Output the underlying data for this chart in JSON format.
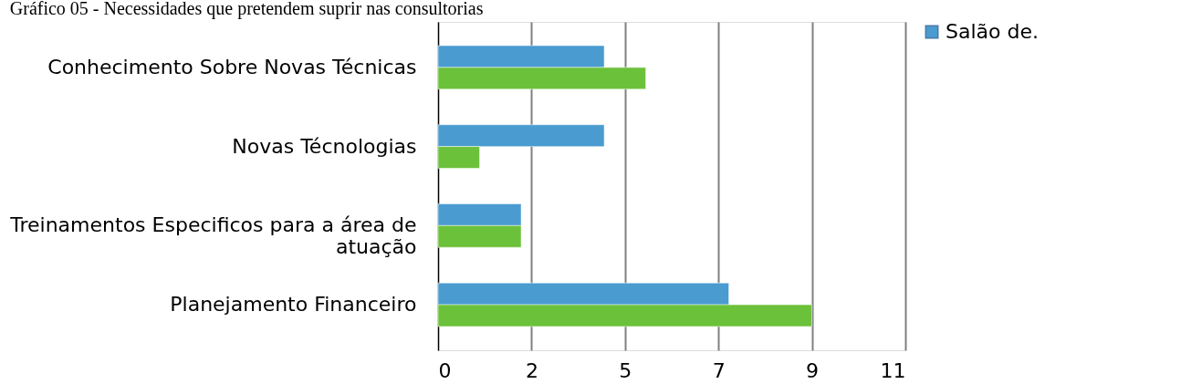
{
  "chart_data": {
    "type": "bar",
    "orientation": "horizontal",
    "title": "Gráfico 05 - Necessidades que pretendem suprir nas consultorias",
    "categories": [
      "Conhecimento Sobre Novas Técnicas",
      "Novas Técnologias",
      "Treinamentos Especificos para a área de atuação",
      "Planejamento Financeiro"
    ],
    "series": [
      {
        "name": "Salão de.",
        "color": "#4a9bd0",
        "values": [
          4,
          4,
          2,
          7
        ]
      },
      {
        "color": "#6cc13a",
        "values": [
          5,
          1,
          2,
          9
        ]
      }
    ],
    "xlim": [
      0,
      11.25
    ],
    "xticks": [
      0,
      {
        "value": 2.25,
        "label": "2"
      },
      {
        "value": 4.5,
        "label": "5"
      },
      {
        "value": 6.75,
        "label": "7"
      },
      9,
      {
        "value": 11.25,
        "label": "11"
      }
    ],
    "grid": "x",
    "legend": "right"
  }
}
